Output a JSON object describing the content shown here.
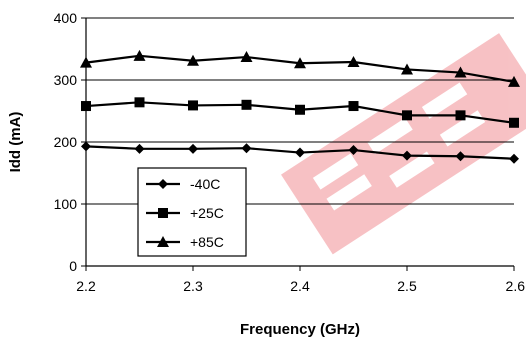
{
  "chart_data": {
    "type": "line",
    "title": "",
    "xlabel": "Frequency (GHz)",
    "ylabel": "Idd (mA)",
    "xlim": [
      2.2,
      2.6
    ],
    "ylim": [
      0,
      400
    ],
    "x_ticks": [
      "2.2",
      "2.3",
      "2.4",
      "2.5",
      "2.6"
    ],
    "x_tick_values": [
      2.2,
      2.3,
      2.4,
      2.5,
      2.6
    ],
    "y_ticks": [
      "0",
      "100",
      "200",
      "300",
      "400"
    ],
    "y_tick_values": [
      0,
      100,
      200,
      300,
      400
    ],
    "grid": "horizontal",
    "legend_position": "bottom-left",
    "x": [
      2.2,
      2.25,
      2.3,
      2.35,
      2.4,
      2.45,
      2.5,
      2.55,
      2.6
    ],
    "series": [
      {
        "name": "-40C",
        "marker": "diamond",
        "color": "#000000",
        "values": [
          193,
          189,
          189,
          190,
          183,
          187,
          178,
          177,
          173
        ]
      },
      {
        "name": "+25C",
        "marker": "square",
        "color": "#000000",
        "values": [
          258,
          264,
          259,
          260,
          252,
          258,
          243,
          243,
          231
        ]
      },
      {
        "name": "+85C",
        "marker": "triangle",
        "color": "#000000",
        "values": [
          328,
          339,
          331,
          337,
          327,
          329,
          317,
          312,
          297
        ]
      }
    ]
  },
  "colors": {
    "watermark": "#e8464f"
  }
}
